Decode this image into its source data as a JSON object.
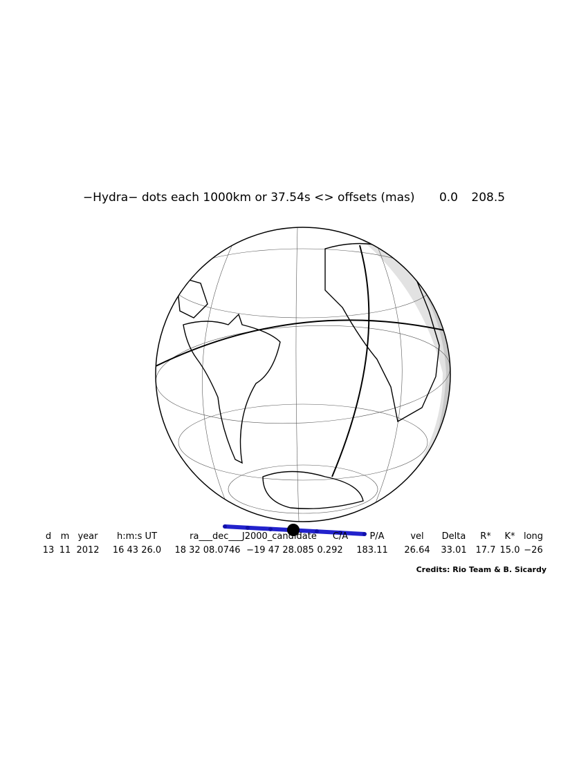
{
  "header": {
    "title": "−Hydra− dots each 1000km or 37.54s <> offsets (mas)",
    "offsets": [
      "0.0",
      "208.5"
    ]
  },
  "table": {
    "columns": [
      "d",
      "m",
      "year",
      "h:m:s UT",
      "ra___dec___J2000_candidate",
      "C/A",
      "P/A",
      "vel",
      "Delta",
      "R*",
      "K*",
      "long"
    ],
    "values": [
      "13",
      "11",
      "2012",
      "16 43 26.0",
      "18 32 08.0746",
      "−19 47 28.085",
      "0.292",
      "183.11",
      "26.64",
      "33.01",
      "17.7",
      "15.0",
      "−26"
    ]
  },
  "credits": "Credits: Rio Team & B. Sicardy"
}
